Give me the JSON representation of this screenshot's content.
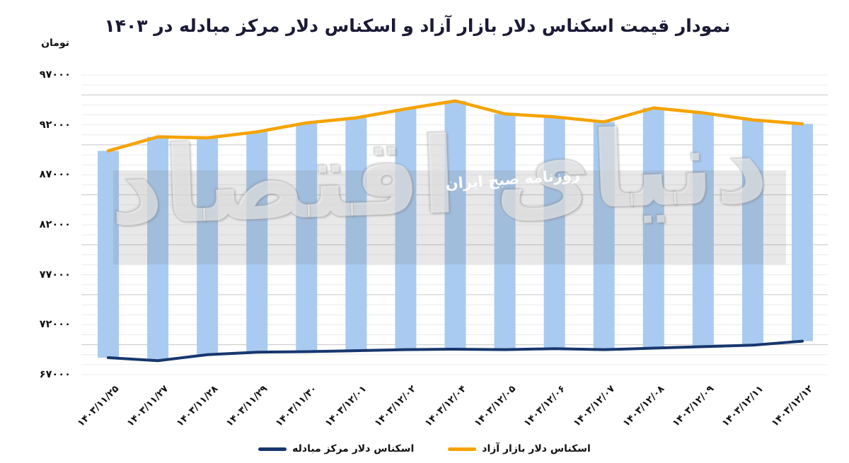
{
  "title": "نمودار قیمت اسکناس دلار بازار آزاد و اسکناس دلار مرکز مبادله در ۱۴۰۳",
  "y_axis": {
    "unit_label": "تومان",
    "ticks": [
      {
        "label": "۹۷۰۰۰",
        "value": 97000
      },
      {
        "label": "۹۲۰۰۰",
        "value": 92000
      },
      {
        "label": "۸۷۰۰۰",
        "value": 87000
      },
      {
        "label": "۸۲۰۰۰",
        "value": 82000
      },
      {
        "label": "۷۷۰۰۰",
        "value": 77000
      },
      {
        "label": "۷۲۰۰۰",
        "value": 72000
      },
      {
        "label": "۶۷۰۰۰",
        "value": 67000
      }
    ]
  },
  "watermark": {
    "logo": "دنیای اقتصاد",
    "slogan": "روزنامه صبح ایران"
  },
  "legend": [
    {
      "label": "اسکناس دلار مرکز مبادله",
      "color": "#17376E"
    },
    {
      "label": "اسکناس دلار بازار آزاد",
      "color": "#F5A300"
    }
  ],
  "colors": {
    "bar": "#A9CBF1",
    "grid_minor": "#ECECEC",
    "grid_major": "#C6C6C6",
    "band": "#808080",
    "title_text": "#1a1a35"
  },
  "chart_data": {
    "type": "line",
    "title": "نمودار قیمت اسکناس دلار بازار آزاد و اسکناس دلار مرکز مبادله در ۱۴۰۳",
    "ylabel": "تومان",
    "categories": [
      "۱۴۰۳/۱۱/۲۵",
      "۱۴۰۳/۱۱/۲۷",
      "۱۴۰۳/۱۱/۲۸",
      "۱۴۰۳/۱۱/۲۹",
      "۱۴۰۳/۱۱/۳۰",
      "۱۴۰۳/۱۲/۰۱",
      "۱۴۰۳/۱۲/۰۲",
      "۱۴۰۳/۱۲/۰۴",
      "۱۴۰۳/۱۲/۰۵",
      "۱۴۰۳/۱۲/۰۶",
      "۱۴۰۳/۱۲/۰۷",
      "۱۴۰۳/۱۲/۰۸",
      "۱۴۰۳/۱۲/۰۹",
      "۱۴۰۳/۱۲/۱۱",
      "۱۴۰۳/۱۲/۱۲"
    ],
    "series": [
      {
        "name": "اسکناس دلار بازار آزاد",
        "color": "#F5A300",
        "values": [
          89400,
          90800,
          90700,
          91300,
          92200,
          92700,
          93600,
          94400,
          93100,
          92800,
          92300,
          93700,
          93200,
          92500,
          92100
        ]
      },
      {
        "name": "اسکناس دلار مرکز مبادله",
        "color": "#17376E",
        "values": [
          68700,
          68400,
          69000,
          69250,
          69300,
          69400,
          69500,
          69550,
          69500,
          69600,
          69500,
          69650,
          69800,
          69950,
          70350
        ]
      }
    ],
    "bars_between_series": true,
    "ylim": [
      67000,
      97000
    ],
    "y_tick_step_major": 5000,
    "y_tick_step_minor": 1000,
    "grid": "on",
    "legend_position": "bottom"
  }
}
